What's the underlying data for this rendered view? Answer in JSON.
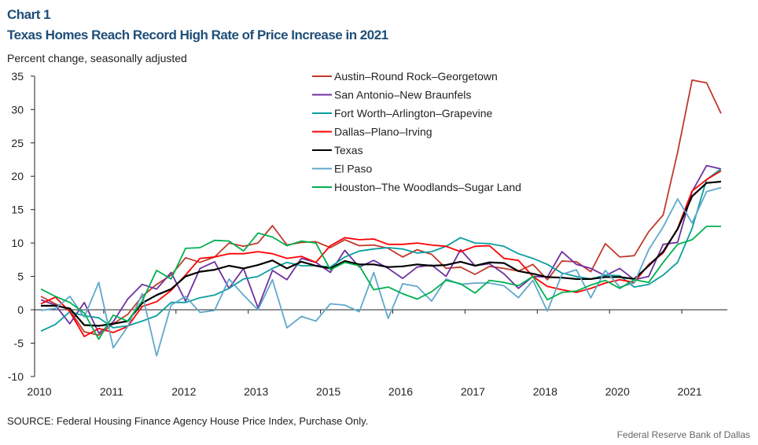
{
  "header": {
    "kicker": "Chart 1",
    "title": "Texas Homes Reach Record High Rate of Price Increase in 2021",
    "unit_label": "Percent change, seasonally adjusted"
  },
  "footer": {
    "source": "SOURCE: Federal Housing Finance Agency House Price Index, Purchase Only.",
    "credit": "Federal Reserve Bank of Dallas"
  },
  "chart_data": {
    "type": "line",
    "title": "Texas Homes Reach Record High Rate of Price Increase in 2021",
    "ylabel": "Percent change, seasonally adjusted",
    "ylim": [
      -10,
      35
    ],
    "yticks": [
      -10,
      -5,
      0,
      5,
      10,
      15,
      20,
      25,
      30,
      35
    ],
    "x_tick_labels": [
      "2010",
      "2011",
      "2012",
      "2013",
      "2015",
      "2016",
      "2017",
      "2018",
      "2020",
      "2021"
    ],
    "grid": false,
    "legend_position": "top-center",
    "series": [
      {
        "name": "Austin–Round Rock–Georgetown",
        "color": "#c0392b",
        "values": [
          2.0,
          0.9,
          -0.1,
          -3.3,
          -3.8,
          -2.1,
          -0.7,
          2.0,
          3.8,
          5.2,
          7.8,
          7.1,
          7.9,
          10.0,
          9.5,
          10.0,
          12.6,
          9.7,
          10.1,
          10.2,
          9.3,
          10.5,
          9.6,
          9.7,
          9.2,
          7.9,
          9.0,
          8.3,
          6.2,
          6.4,
          5.3,
          6.5,
          6.2,
          5.8,
          6.8,
          4.5,
          7.3,
          7.2,
          5.7,
          9.9,
          7.9,
          8.1,
          11.7,
          14.2,
          23.6,
          34.4,
          34.0,
          29.4
        ]
      },
      {
        "name": "San Antonio–New Braunfels",
        "color": "#7030a0",
        "values": [
          1.5,
          0.7,
          -2.1,
          1.1,
          -3.5,
          -1.8,
          1.6,
          3.8,
          3.1,
          5.6,
          1.3,
          6.2,
          7.2,
          3.2,
          6.2,
          0.3,
          5.9,
          4.5,
          7.7,
          7.1,
          5.6,
          8.9,
          6.4,
          7.4,
          6.2,
          4.7,
          6.4,
          6.7,
          5.0,
          9.0,
          6.6,
          6.9,
          5.4,
          3.2,
          5.0,
          4.9,
          8.7,
          6.8,
          6.2,
          5.1,
          6.2,
          4.5,
          5.0,
          9.8,
          10.1,
          17.7,
          21.6,
          21.1
        ]
      },
      {
        "name": "Fort Worth–Arlington–Grapevine",
        "color": "#0a9e9e",
        "values": [
          -3.2,
          -2.2,
          -0.3,
          -0.9,
          -1.2,
          -2.7,
          -2.4,
          -1.7,
          -0.9,
          1.1,
          1.1,
          1.8,
          2.2,
          3.2,
          4.6,
          5.0,
          6.2,
          7.1,
          6.6,
          6.6,
          6.4,
          7.9,
          8.8,
          9.1,
          9.3,
          9.1,
          8.5,
          8.7,
          9.5,
          10.8,
          10.0,
          9.9,
          9.5,
          8.4,
          7.7,
          6.8,
          5.5,
          5.0,
          4.6,
          5.2,
          5.1,
          3.4,
          3.8,
          5.2,
          7.1,
          12.2,
          19.5,
          21.1
        ]
      },
      {
        "name": "Dallas–Plano–Irving",
        "color": "#ff0000",
        "values": [
          0.9,
          1.9,
          -0.3,
          -4.0,
          -2.8,
          -3.4,
          -2.5,
          0.5,
          1.2,
          2.9,
          5.2,
          7.7,
          7.9,
          8.4,
          8.4,
          8.7,
          8.4,
          7.7,
          8.0,
          7.1,
          9.6,
          10.8,
          10.5,
          10.6,
          9.8,
          9.8,
          10.0,
          9.7,
          9.5,
          8.7,
          9.5,
          9.6,
          7.7,
          7.4,
          5.0,
          3.5,
          3.0,
          2.6,
          3.2,
          4.0,
          4.5,
          4.1,
          6.8,
          8.5,
          12.2,
          17.8,
          19.5,
          20.8
        ]
      },
      {
        "name": "Texas",
        "color": "#000000",
        "values": [
          0.6,
          0.6,
          0.2,
          -2.3,
          -2.4,
          -2.1,
          -1.7,
          1.0,
          2.2,
          3.1,
          5.0,
          5.7,
          6.0,
          6.6,
          6.2,
          6.7,
          7.4,
          6.2,
          7.2,
          6.6,
          6.2,
          7.3,
          6.8,
          6.8,
          6.4,
          6.5,
          6.8,
          6.6,
          6.7,
          7.2,
          6.6,
          7.1,
          7.0,
          5.8,
          5.4,
          4.9,
          4.8,
          4.6,
          4.6,
          4.9,
          4.9,
          4.6,
          6.6,
          8.7,
          12.1,
          17.0,
          19.0,
          19.2
        ]
      },
      {
        "name": "El Paso",
        "color": "#5fa8cc",
        "values": [
          -0.1,
          0.2,
          2.0,
          -1.1,
          4.1,
          -5.7,
          -2.5,
          2.4,
          -6.9,
          0.7,
          2.0,
          -0.4,
          -0.1,
          4.6,
          2.2,
          0.0,
          4.5,
          -2.7,
          -1.0,
          -1.7,
          0.9,
          0.7,
          -0.3,
          5.6,
          -1.3,
          3.9,
          3.5,
          1.3,
          4.6,
          3.8,
          4.0,
          4.0,
          3.6,
          1.8,
          4.4,
          -0.2,
          5.3,
          6.0,
          1.8,
          5.9,
          3.4,
          4.0,
          9.0,
          12.4,
          16.6,
          13.0,
          17.7,
          18.3
        ]
      },
      {
        "name": "Houston–The Woodlands–Sugar Land",
        "color": "#00b050",
        "values": [
          3.1,
          2.0,
          1.1,
          -0.5,
          -4.4,
          -0.8,
          -1.7,
          1.3,
          5.9,
          4.6,
          9.2,
          9.3,
          10.4,
          10.3,
          8.8,
          11.5,
          10.9,
          9.6,
          10.3,
          10.0,
          6.0,
          7.1,
          6.6,
          3.0,
          3.4,
          2.4,
          1.6,
          2.7,
          4.4,
          3.9,
          2.5,
          4.4,
          4.1,
          3.6,
          5.0,
          1.5,
          2.6,
          2.8,
          3.7,
          4.4,
          3.2,
          4.5,
          4.1,
          7.1,
          9.8,
          10.5,
          12.5,
          12.5
        ]
      }
    ]
  }
}
